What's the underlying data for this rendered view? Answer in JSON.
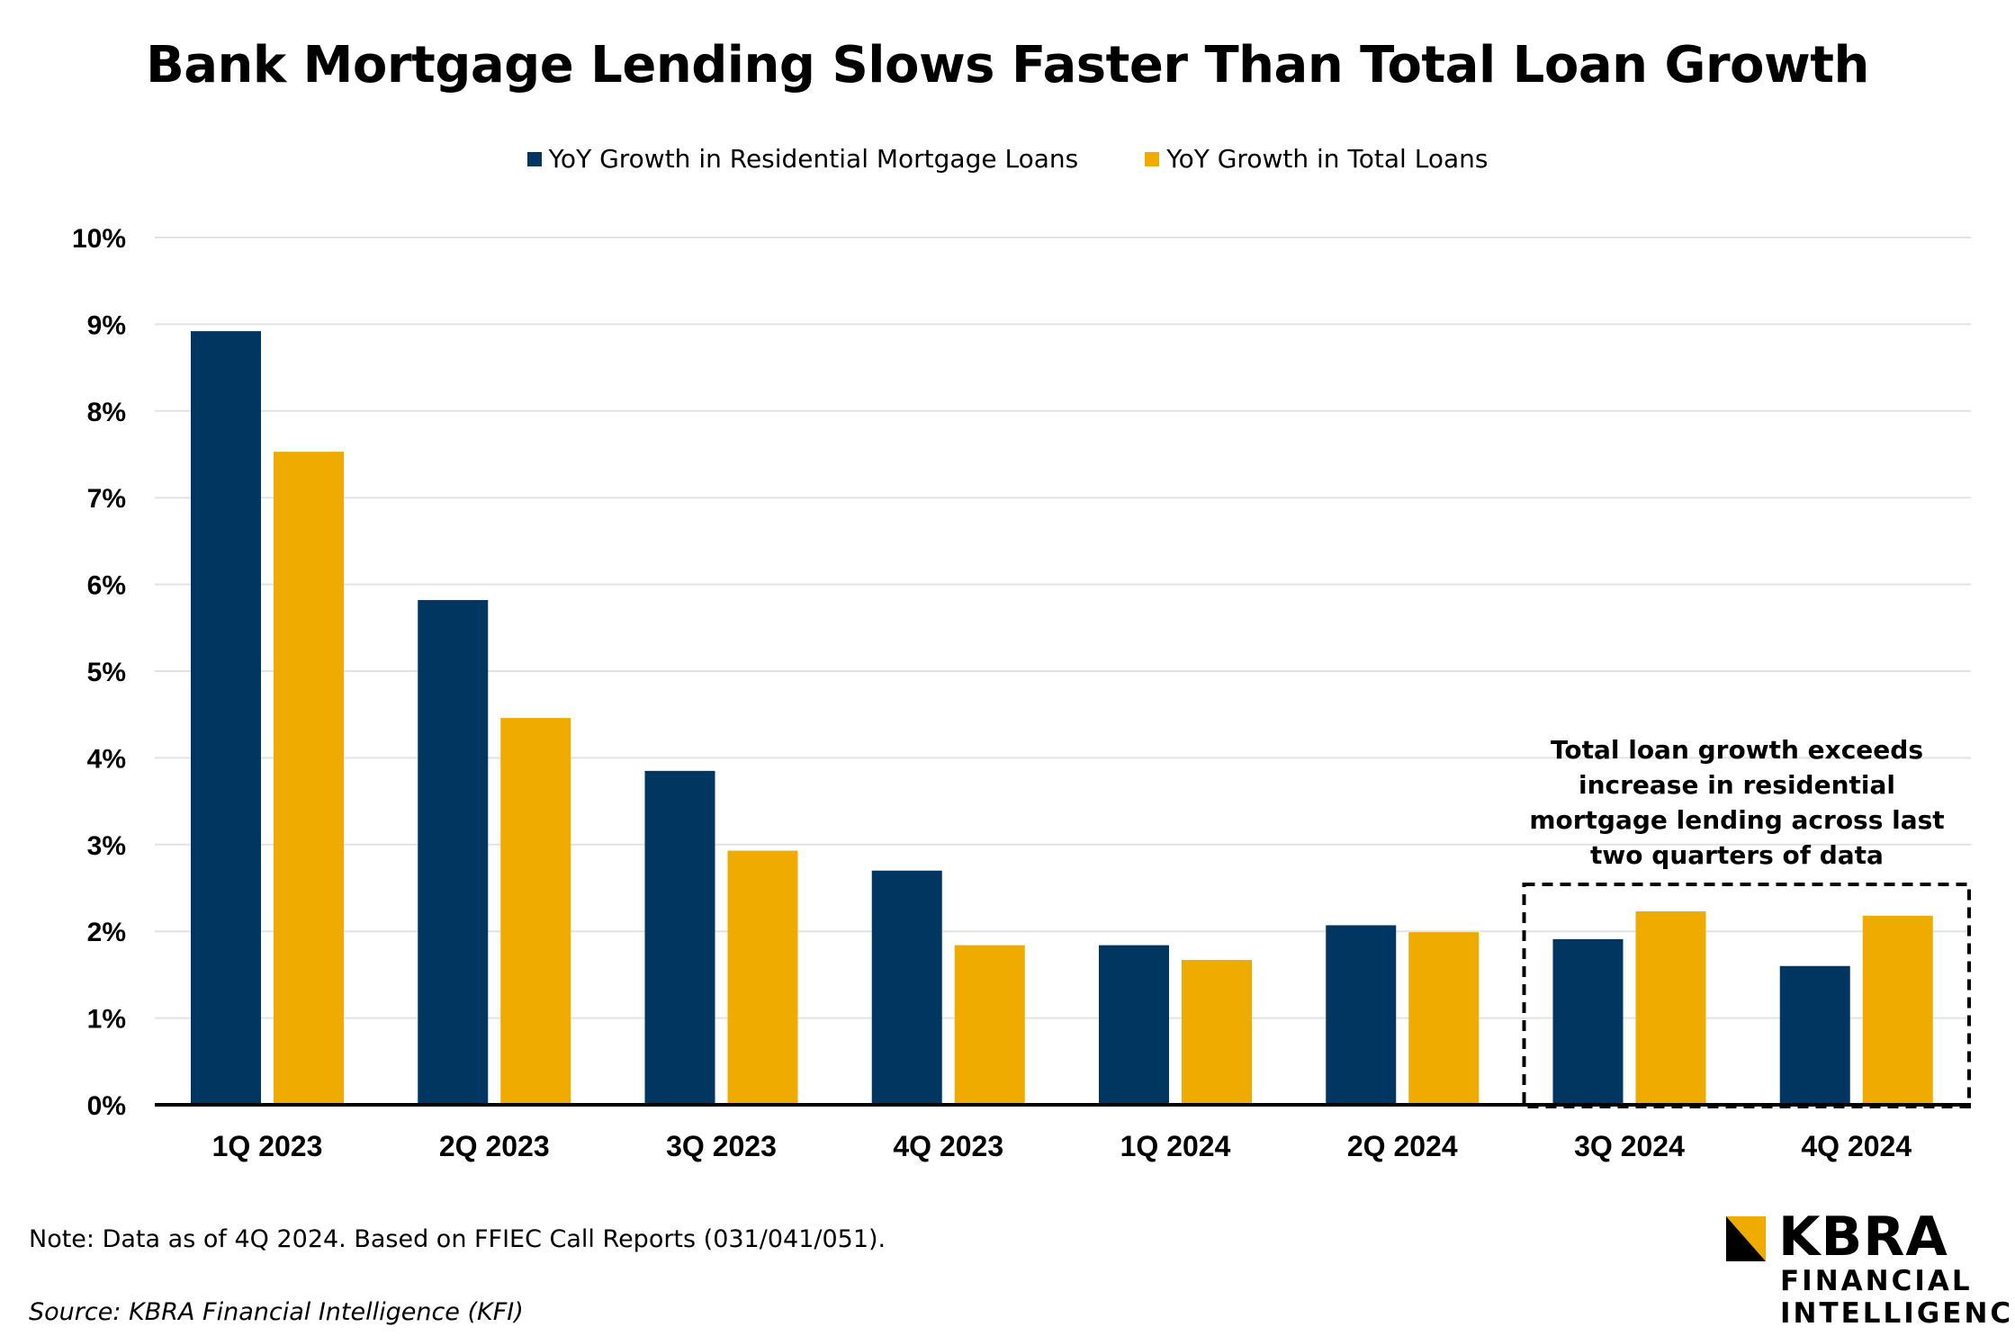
{
  "chart_data": {
    "type": "bar",
    "title": "Bank Mortgage Lending Slows Faster Than Total Loan Growth",
    "categories": [
      "1Q 2023",
      "2Q 2023",
      "3Q 2023",
      "4Q 2023",
      "1Q 2024",
      "2Q 2024",
      "3Q 2024",
      "4Q 2024"
    ],
    "series": [
      {
        "name": "YoY Growth in Residential Mortgage Loans",
        "color": "#003660",
        "values": [
          8.92,
          5.82,
          3.85,
          2.7,
          1.84,
          2.07,
          1.91,
          1.6
        ]
      },
      {
        "name": "YoY Growth in Total Loans",
        "color": "#F0AB00",
        "values": [
          7.53,
          4.46,
          2.93,
          1.84,
          1.67,
          1.99,
          2.23,
          2.18
        ]
      }
    ],
    "y_ticks": [
      "0%",
      "1%",
      "2%",
      "3%",
      "4%",
      "5%",
      "6%",
      "7%",
      "8%",
      "9%",
      "10%"
    ],
    "ylim": [
      0,
      10
    ],
    "grid": true,
    "legend_position": "top-center",
    "annotation": {
      "lines": [
        "Total loan growth exceeds",
        "increase in residential",
        "mortgage lending across last",
        "two quarters of data"
      ],
      "highlighted_categories": [
        "3Q 2024",
        "4Q 2024"
      ]
    }
  },
  "footer": {
    "note": "Note: Data as of 4Q 2024. Based on FFIEC Call Reports (031/041/051).",
    "source": "Source: KBRA Financial Intelligence (KFI)"
  },
  "logo": {
    "name": "KBRA",
    "sub1": "FINANCIAL",
    "sub2": "INTELLIGENCE",
    "accent": "#F0AB00"
  }
}
